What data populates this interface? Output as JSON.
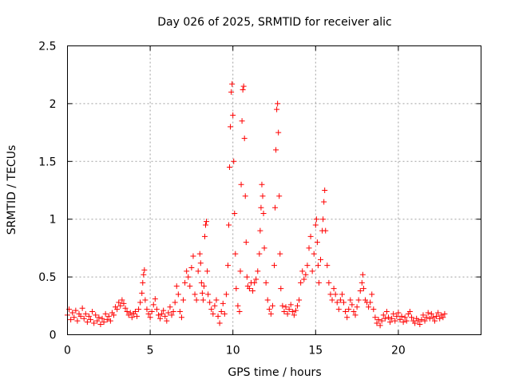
{
  "chart_data": {
    "type": "scatter",
    "title": "Day 026 of 2025, SRMTID for receiver alic",
    "xlabel": "GPS time / hours",
    "ylabel": "SRMTID / TECUs",
    "xlim": [
      0,
      25
    ],
    "ylim": [
      0,
      2.5
    ],
    "x_ticks": [
      0,
      5,
      10,
      15,
      20
    ],
    "x_tick_labels": [
      "0",
      "5",
      "10",
      "15",
      "20"
    ],
    "y_ticks": [
      0,
      0.5,
      1,
      1.5,
      2,
      2.5
    ],
    "y_tick_labels": [
      "0",
      "0.5",
      "1",
      "1.5",
      "2",
      "2.5"
    ],
    "grid": true,
    "marker": "+",
    "series": [
      {
        "name": "SRMTID",
        "color": "#ff0000",
        "points": [
          [
            0.0,
            0.17
          ],
          [
            0.1,
            0.22
          ],
          [
            0.2,
            0.13
          ],
          [
            0.3,
            0.19
          ],
          [
            0.4,
            0.15
          ],
          [
            0.5,
            0.21
          ],
          [
            0.6,
            0.12
          ],
          [
            0.7,
            0.18
          ],
          [
            0.8,
            0.16
          ],
          [
            0.9,
            0.23
          ],
          [
            1.0,
            0.14
          ],
          [
            1.1,
            0.18
          ],
          [
            1.2,
            0.11
          ],
          [
            1.3,
            0.16
          ],
          [
            1.4,
            0.13
          ],
          [
            1.5,
            0.2
          ],
          [
            1.6,
            0.1
          ],
          [
            1.7,
            0.17
          ],
          [
            1.8,
            0.12
          ],
          [
            1.9,
            0.15
          ],
          [
            2.0,
            0.09
          ],
          [
            2.1,
            0.14
          ],
          [
            2.2,
            0.11
          ],
          [
            2.3,
            0.18
          ],
          [
            2.4,
            0.13
          ],
          [
            2.5,
            0.16
          ],
          [
            2.6,
            0.12
          ],
          [
            2.7,
            0.19
          ],
          [
            2.8,
            0.17
          ],
          [
            2.9,
            0.24
          ],
          [
            3.0,
            0.22
          ],
          [
            3.1,
            0.28
          ],
          [
            3.2,
            0.25
          ],
          [
            3.3,
            0.3
          ],
          [
            3.4,
            0.27
          ],
          [
            3.5,
            0.23
          ],
          [
            3.6,
            0.2
          ],
          [
            3.7,
            0.17
          ],
          [
            3.8,
            0.19
          ],
          [
            3.9,
            0.15
          ],
          [
            4.0,
            0.18
          ],
          [
            4.1,
            0.2
          ],
          [
            4.2,
            0.16
          ],
          [
            4.3,
            0.22
          ],
          [
            4.4,
            0.28
          ],
          [
            4.5,
            0.36
          ],
          [
            4.55,
            0.45
          ],
          [
            4.6,
            0.52
          ],
          [
            4.65,
            0.56
          ],
          [
            4.7,
            0.3
          ],
          [
            4.8,
            0.22
          ],
          [
            4.9,
            0.18
          ],
          [
            5.0,
            0.15
          ],
          [
            5.1,
            0.2
          ],
          [
            5.2,
            0.26
          ],
          [
            5.3,
            0.31
          ],
          [
            5.4,
            0.22
          ],
          [
            5.5,
            0.17
          ],
          [
            5.6,
            0.14
          ],
          [
            5.7,
            0.18
          ],
          [
            5.8,
            0.21
          ],
          [
            5.9,
            0.16
          ],
          [
            6.0,
            0.12
          ],
          [
            6.1,
            0.19
          ],
          [
            6.2,
            0.24
          ],
          [
            6.3,
            0.17
          ],
          [
            6.4,
            0.2
          ],
          [
            6.5,
            0.28
          ],
          [
            6.6,
            0.42
          ],
          [
            6.7,
            0.35
          ],
          [
            6.8,
            0.2
          ],
          [
            6.9,
            0.15
          ],
          [
            7.0,
            0.3
          ],
          [
            7.1,
            0.45
          ],
          [
            7.2,
            0.55
          ],
          [
            7.3,
            0.5
          ],
          [
            7.4,
            0.42
          ],
          [
            7.5,
            0.58
          ],
          [
            7.6,
            0.68
          ],
          [
            7.7,
            0.35
          ],
          [
            7.8,
            0.3
          ],
          [
            7.9,
            0.55
          ],
          [
            8.0,
            0.7
          ],
          [
            8.05,
            0.62
          ],
          [
            8.1,
            0.45
          ],
          [
            8.15,
            0.36
          ],
          [
            8.2,
            0.3
          ],
          [
            8.25,
            0.42
          ],
          [
            8.3,
            0.85
          ],
          [
            8.35,
            0.95
          ],
          [
            8.4,
            0.98
          ],
          [
            8.45,
            0.55
          ],
          [
            8.5,
            0.35
          ],
          [
            8.6,
            0.28
          ],
          [
            8.7,
            0.22
          ],
          [
            8.8,
            0.18
          ],
          [
            8.9,
            0.25
          ],
          [
            9.0,
            0.3
          ],
          [
            9.1,
            0.16
          ],
          [
            9.2,
            0.1
          ],
          [
            9.3,
            0.2
          ],
          [
            9.4,
            0.27
          ],
          [
            9.5,
            0.18
          ],
          [
            9.6,
            0.35
          ],
          [
            9.7,
            0.6
          ],
          [
            9.75,
            0.95
          ],
          [
            9.8,
            1.45
          ],
          [
            9.85,
            1.8
          ],
          [
            9.9,
            2.1
          ],
          [
            9.95,
            2.17
          ],
          [
            10.0,
            1.9
          ],
          [
            10.05,
            1.5
          ],
          [
            10.1,
            1.05
          ],
          [
            10.15,
            0.7
          ],
          [
            10.2,
            0.4
          ],
          [
            10.3,
            0.25
          ],
          [
            10.4,
            0.2
          ],
          [
            10.45,
            0.55
          ],
          [
            10.5,
            1.3
          ],
          [
            10.55,
            1.85
          ],
          [
            10.6,
            2.12
          ],
          [
            10.65,
            2.15
          ],
          [
            10.7,
            1.7
          ],
          [
            10.75,
            1.2
          ],
          [
            10.8,
            0.8
          ],
          [
            10.85,
            0.5
          ],
          [
            10.9,
            0.42
          ],
          [
            11.0,
            0.4
          ],
          [
            11.1,
            0.45
          ],
          [
            11.2,
            0.38
          ],
          [
            11.3,
            0.45
          ],
          [
            11.4,
            0.48
          ],
          [
            11.5,
            0.55
          ],
          [
            11.6,
            0.7
          ],
          [
            11.65,
            0.9
          ],
          [
            11.7,
            1.1
          ],
          [
            11.75,
            1.3
          ],
          [
            11.8,
            1.2
          ],
          [
            11.85,
            1.05
          ],
          [
            11.9,
            0.75
          ],
          [
            12.0,
            0.45
          ],
          [
            12.1,
            0.3
          ],
          [
            12.2,
            0.22
          ],
          [
            12.3,
            0.18
          ],
          [
            12.4,
            0.25
          ],
          [
            12.5,
            0.6
          ],
          [
            12.55,
            1.1
          ],
          [
            12.6,
            1.6
          ],
          [
            12.65,
            1.95
          ],
          [
            12.7,
            2.0
          ],
          [
            12.75,
            1.75
          ],
          [
            12.8,
            1.2
          ],
          [
            12.85,
            0.7
          ],
          [
            12.9,
            0.4
          ],
          [
            13.0,
            0.25
          ],
          [
            13.1,
            0.2
          ],
          [
            13.2,
            0.24
          ],
          [
            13.3,
            0.18
          ],
          [
            13.4,
            0.22
          ],
          [
            13.5,
            0.26
          ],
          [
            13.6,
            0.2
          ],
          [
            13.7,
            0.17
          ],
          [
            13.8,
            0.21
          ],
          [
            13.9,
            0.25
          ],
          [
            14.0,
            0.3
          ],
          [
            14.1,
            0.45
          ],
          [
            14.2,
            0.55
          ],
          [
            14.3,
            0.48
          ],
          [
            14.4,
            0.52
          ],
          [
            14.5,
            0.6
          ],
          [
            14.6,
            0.75
          ],
          [
            14.7,
            0.85
          ],
          [
            14.8,
            0.55
          ],
          [
            14.9,
            0.7
          ],
          [
            15.0,
            0.95
          ],
          [
            15.05,
            1.0
          ],
          [
            15.1,
            0.8
          ],
          [
            15.15,
            0.6
          ],
          [
            15.2,
            0.45
          ],
          [
            15.3,
            0.65
          ],
          [
            15.4,
            0.9
          ],
          [
            15.45,
            1.0
          ],
          [
            15.5,
            1.15
          ],
          [
            15.55,
            1.25
          ],
          [
            15.6,
            0.9
          ],
          [
            15.7,
            0.6
          ],
          [
            15.8,
            0.45
          ],
          [
            15.9,
            0.35
          ],
          [
            16.0,
            0.3
          ],
          [
            16.1,
            0.4
          ],
          [
            16.2,
            0.35
          ],
          [
            16.3,
            0.28
          ],
          [
            16.4,
            0.22
          ],
          [
            16.5,
            0.3
          ],
          [
            16.6,
            0.35
          ],
          [
            16.7,
            0.28
          ],
          [
            16.8,
            0.2
          ],
          [
            16.9,
            0.15
          ],
          [
            17.0,
            0.22
          ],
          [
            17.1,
            0.3
          ],
          [
            17.2,
            0.26
          ],
          [
            17.3,
            0.2
          ],
          [
            17.4,
            0.17
          ],
          [
            17.5,
            0.24
          ],
          [
            17.6,
            0.3
          ],
          [
            17.7,
            0.38
          ],
          [
            17.8,
            0.45
          ],
          [
            17.85,
            0.52
          ],
          [
            17.9,
            0.4
          ],
          [
            18.0,
            0.3
          ],
          [
            18.1,
            0.28
          ],
          [
            18.2,
            0.24
          ],
          [
            18.3,
            0.28
          ],
          [
            18.4,
            0.35
          ],
          [
            18.5,
            0.22
          ],
          [
            18.6,
            0.15
          ],
          [
            18.7,
            0.1
          ],
          [
            18.8,
            0.13
          ],
          [
            18.9,
            0.08
          ],
          [
            19.0,
            0.12
          ],
          [
            19.1,
            0.17
          ],
          [
            19.2,
            0.14
          ],
          [
            19.3,
            0.2
          ],
          [
            19.4,
            0.15
          ],
          [
            19.5,
            0.11
          ],
          [
            19.6,
            0.14
          ],
          [
            19.7,
            0.18
          ],
          [
            19.8,
            0.12
          ],
          [
            19.9,
            0.16
          ],
          [
            20.0,
            0.19
          ],
          [
            20.1,
            0.13
          ],
          [
            20.2,
            0.16
          ],
          [
            20.3,
            0.11
          ],
          [
            20.4,
            0.15
          ],
          [
            20.5,
            0.12
          ],
          [
            20.6,
            0.18
          ],
          [
            20.7,
            0.2
          ],
          [
            20.8,
            0.15
          ],
          [
            20.9,
            0.12
          ],
          [
            21.0,
            0.1
          ],
          [
            21.1,
            0.14
          ],
          [
            21.2,
            0.12
          ],
          [
            21.3,
            0.09
          ],
          [
            21.4,
            0.13
          ],
          [
            21.5,
            0.17
          ],
          [
            21.6,
            0.12
          ],
          [
            21.7,
            0.15
          ],
          [
            21.8,
            0.19
          ],
          [
            21.9,
            0.14
          ],
          [
            22.0,
            0.18
          ],
          [
            22.1,
            0.15
          ],
          [
            22.2,
            0.12
          ],
          [
            22.3,
            0.16
          ],
          [
            22.4,
            0.19
          ],
          [
            22.5,
            0.14
          ],
          [
            22.6,
            0.17
          ],
          [
            22.7,
            0.15
          ],
          [
            22.8,
            0.18
          ]
        ]
      }
    ]
  }
}
